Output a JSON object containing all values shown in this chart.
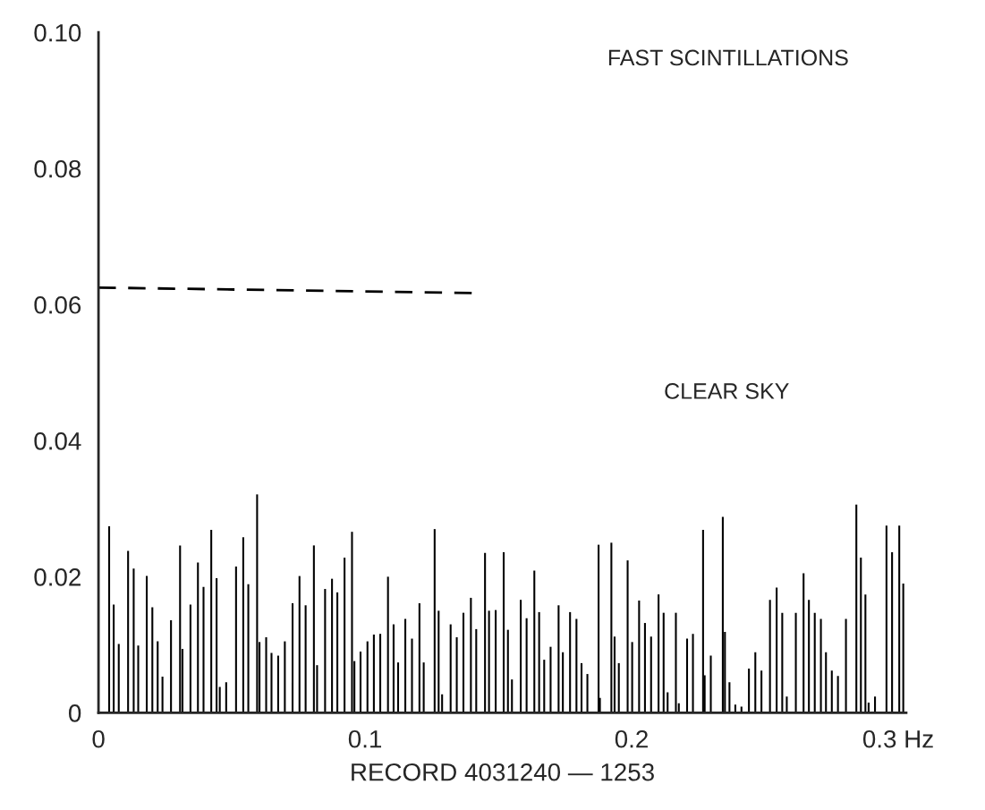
{
  "chart_data": {
    "type": "bar",
    "xlabel": "RECORD 4031240 — 1253",
    "annotations": [
      "FAST SCINTILLATIONS",
      "CLEAR SKY"
    ],
    "xlim": [
      0,
      0.303
    ],
    "ylim": [
      0,
      0.1
    ],
    "xticks": [
      {
        "value": 0,
        "label": "0"
      },
      0.1,
      0.2,
      {
        "value": 0.3,
        "label": "0.3 Hz"
      }
    ],
    "yticks": [
      {
        "value": 0,
        "label": "0"
      },
      0.02,
      0.04,
      0.06,
      0.08,
      {
        "value": 0.1,
        "label": "0.10"
      }
    ],
    "grid": false,
    "legend": false,
    "series": [
      {
        "color": "#000000",
        "x": [
          0.004,
          0.0057,
          0.0076,
          0.0111,
          0.0132,
          0.0149,
          0.0181,
          0.0202,
          0.0222,
          0.024,
          0.0272,
          0.0306,
          0.0315,
          0.0345,
          0.0373,
          0.0394,
          0.0423,
          0.0443,
          0.0455,
          0.0479,
          0.0516,
          0.0543,
          0.0562,
          0.0595,
          0.0604,
          0.0629,
          0.0649,
          0.0674,
          0.0699,
          0.0728,
          0.0754,
          0.0777,
          0.0808,
          0.082,
          0.085,
          0.0876,
          0.0896,
          0.0923,
          0.0951,
          0.096,
          0.0983,
          0.1009,
          0.1033,
          0.1057,
          0.1086,
          0.1107,
          0.1124,
          0.1151,
          0.1176,
          0.1204,
          0.122,
          0.1261,
          0.1276,
          0.1289,
          0.1321,
          0.1344,
          0.1369,
          0.1397,
          0.1417,
          0.145,
          0.1465,
          0.149,
          0.152,
          0.1536,
          0.1551,
          0.1584,
          0.1606,
          0.1635,
          0.1653,
          0.1672,
          0.1696,
          0.1726,
          0.1742,
          0.1769,
          0.1793,
          0.1812,
          0.1834,
          0.1876,
          0.1881,
          0.1924,
          0.1936,
          0.1952,
          0.1985,
          0.2002,
          0.2028,
          0.205,
          0.2073,
          0.2101,
          0.212,
          0.2135,
          0.2166,
          0.2177,
          0.2208,
          0.223,
          0.2268,
          0.2274,
          0.2297,
          0.2342,
          0.235,
          0.2367,
          0.2389,
          0.2412,
          0.244,
          0.2464,
          0.2487,
          0.2519,
          0.2544,
          0.2565,
          0.2582,
          0.2616,
          0.2645,
          0.2665,
          0.2687,
          0.271,
          0.2729,
          0.2751,
          0.2774,
          0.2804,
          0.2843,
          0.286,
          0.2877,
          0.2889,
          0.2913,
          0.2956,
          0.2977,
          0.3004,
          0.3019
        ],
        "values": [
          0.0274,
          0.0159,
          0.0101,
          0.0238,
          0.0212,
          0.0099,
          0.0201,
          0.0155,
          0.0105,
          0.0053,
          0.0136,
          0.0246,
          0.0094,
          0.0159,
          0.0221,
          0.0185,
          0.0269,
          0.0198,
          0.0038,
          0.0045,
          0.0215,
          0.0258,
          0.0189,
          0.0321,
          0.0104,
          0.0111,
          0.0088,
          0.0084,
          0.0105,
          0.0161,
          0.0201,
          0.0158,
          0.0246,
          0.007,
          0.0182,
          0.0197,
          0.0177,
          0.0228,
          0.0266,
          0.0076,
          0.009,
          0.0105,
          0.0115,
          0.0116,
          0.02,
          0.013,
          0.0074,
          0.0138,
          0.0109,
          0.0161,
          0.0074,
          0.027,
          0.015,
          0.0027,
          0.013,
          0.0111,
          0.0147,
          0.0169,
          0.0123,
          0.0235,
          0.015,
          0.0151,
          0.0236,
          0.0122,
          0.0049,
          0.0166,
          0.0139,
          0.0209,
          0.0148,
          0.0078,
          0.0097,
          0.0158,
          0.0089,
          0.0148,
          0.0138,
          0.0073,
          0.0057,
          0.0247,
          0.0022,
          0.025,
          0.0112,
          0.0073,
          0.0224,
          0.0104,
          0.0165,
          0.0132,
          0.0112,
          0.0174,
          0.0147,
          0.003,
          0.0147,
          0.0014,
          0.0109,
          0.0116,
          0.0269,
          0.0055,
          0.0084,
          0.0288,
          0.0119,
          0.0045,
          0.0012,
          0.0009,
          0.0065,
          0.0089,
          0.0062,
          0.0166,
          0.0184,
          0.0147,
          0.0024,
          0.0147,
          0.0205,
          0.0166,
          0.0147,
          0.0138,
          0.0089,
          0.0062,
          0.0054,
          0.0138,
          0.0306,
          0.0228,
          0.0174,
          0.0015,
          0.0024,
          0.0275,
          0.0236,
          0.0275,
          0.019
        ]
      },
      {
        "type": "line",
        "color": "#000000",
        "line_style": "dashed",
        "x": [
          0,
          0.14
        ],
        "values": [
          0.0625,
          0.0617
        ]
      }
    ]
  }
}
